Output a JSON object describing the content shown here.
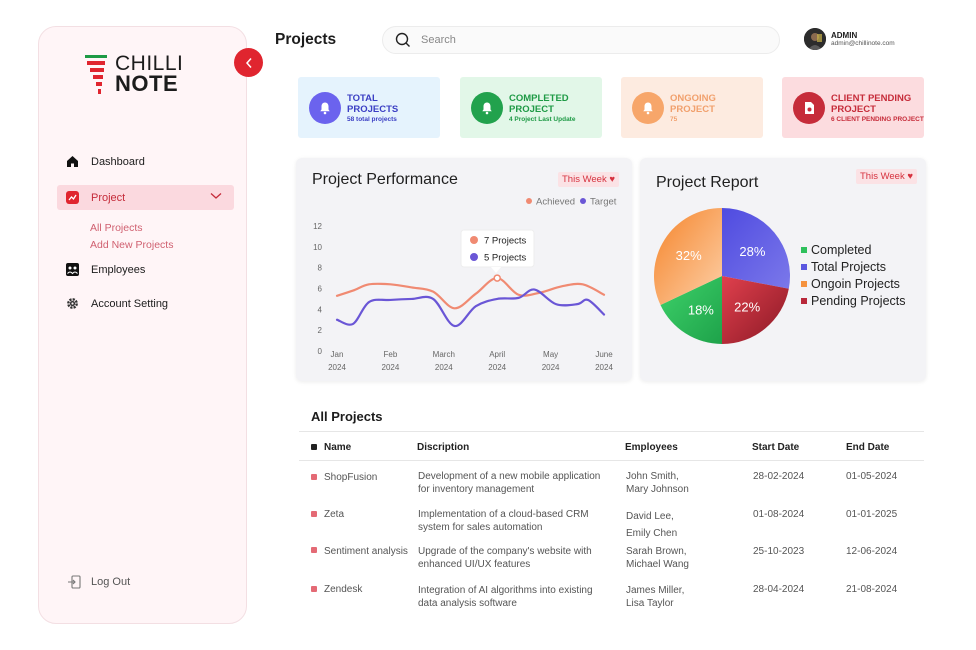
{
  "brand": {
    "line1": "CHILLI",
    "line2": "NOTE"
  },
  "sidebar": {
    "items": [
      {
        "label": "Dashboard",
        "icon": "home-icon"
      },
      {
        "label": "Project",
        "icon": "project-icon"
      },
      {
        "label": "Employees",
        "icon": "employees-icon"
      },
      {
        "label": "Account Setting",
        "icon": "gear-icon"
      }
    ],
    "sub_items": [
      "All Projects",
      "Add New Projects"
    ],
    "logout": "Log Out"
  },
  "header": {
    "title": "Projects",
    "search_placeholder": "Search",
    "user_name": "ADMIN",
    "user_email": "admin@chillinote.com"
  },
  "stats": [
    {
      "title_l1": "TOTAL",
      "title_l2": "PROJECTS",
      "sub": "58 total projects",
      "bg": "#e5f3fd",
      "color": "#3b3fc4",
      "circle": "#6b63ee"
    },
    {
      "title_l1": "COMPLETED",
      "title_l2": "PROJECT",
      "sub": "4 Project Last Update",
      "bg": "#e2f7e8",
      "color": "#1e9a45",
      "circle": "#22a24d"
    },
    {
      "title_l1": "ONGOING",
      "title_l2": "PROJECT",
      "sub": "75",
      "bg": "#fdebe0",
      "color": "#f1a06d",
      "circle": "#f7a66a"
    },
    {
      "title_l1": "CLIENT PENDING",
      "title_l2": "PROJECT",
      "sub": "6 CLIENT PENDING PROJECT",
      "bg": "#fcdcdf",
      "color": "#c62c3a",
      "circle": "#c62c3a"
    }
  ],
  "performance": {
    "title": "Project Performance",
    "week_label": "This Week",
    "legend": [
      "Achieved",
      "Target"
    ],
    "tooltip": [
      "7 Projects",
      "5 Projects"
    ]
  },
  "report": {
    "title": "Project Report",
    "week_label": "This Week",
    "legend": [
      "Completed",
      "Total Projects",
      "Ongoin Projects",
      "Pending Projects"
    ]
  },
  "chart_data": [
    {
      "type": "line",
      "title": "Project Performance",
      "x": [
        "Jan 2024",
        "Feb 2024",
        "March 2024",
        "April 2024",
        "May 2024",
        "June 2024"
      ],
      "ylim": [
        0,
        12
      ],
      "yticks": [
        "0",
        "2",
        "4",
        "6",
        "8",
        "10",
        "12"
      ],
      "xticks": [
        [
          "Jan",
          "2024"
        ],
        [
          "Feb",
          "2024"
        ],
        [
          "March",
          "2024"
        ],
        [
          "April",
          "2024"
        ],
        [
          "May",
          "2024"
        ],
        [
          "June",
          "2024"
        ]
      ],
      "legend_position": "top-right",
      "series": [
        {
          "name": "Achieved",
          "color": "#f08a72",
          "points": [
            [
              0,
              5.3
            ],
            [
              0.3,
              5.8
            ],
            [
              0.6,
              6.4
            ],
            [
              1,
              6.4
            ],
            [
              1.4,
              6.1
            ],
            [
              1.8,
              5.7
            ],
            [
              2.2,
              4.1
            ],
            [
              2.6,
              5.5
            ],
            [
              3,
              7.0
            ],
            [
              3.4,
              5.4
            ],
            [
              3.8,
              5.6
            ],
            [
              4.2,
              6.2
            ],
            [
              4.6,
              6.4
            ],
            [
              5,
              5.4
            ]
          ]
        },
        {
          "name": "Target",
          "color": "#6a56d6",
          "points": [
            [
              0,
              3.0
            ],
            [
              0.3,
              2.6
            ],
            [
              0.6,
              4.7
            ],
            [
              1,
              4.9
            ],
            [
              1.4,
              5.0
            ],
            [
              1.8,
              5.0
            ],
            [
              2.2,
              2.4
            ],
            [
              2.6,
              4.3
            ],
            [
              3,
              5.0
            ],
            [
              3.4,
              5.1
            ],
            [
              3.7,
              5.9
            ],
            [
              4.1,
              4.5
            ],
            [
              4.5,
              4.5
            ],
            [
              4.7,
              4.9
            ],
            [
              5,
              3.5
            ]
          ]
        }
      ]
    },
    {
      "type": "pie",
      "title": "Project Report",
      "slices": [
        {
          "label": "Completed",
          "value": 18,
          "text": "18%",
          "color": "#2ec05c"
        },
        {
          "label": "Total Projects",
          "value": 28,
          "text": "28%",
          "color": "#5b57e0"
        },
        {
          "label": "Ongoin Projects",
          "value": 32,
          "text": "32%",
          "color": "#f5923f"
        },
        {
          "label": "Pending Projects",
          "value": 22,
          "text": "22%",
          "color": "#b8283a"
        }
      ]
    }
  ],
  "table": {
    "title": "All Projects",
    "headers": [
      "Name",
      "Discription",
      "Employees",
      "Start Date",
      "End Date"
    ],
    "rows": [
      {
        "name": "ShopFusion",
        "desc_l1": "Development of a new mobile application",
        "desc_l2": "for inventory management",
        "emp_l1": "John Smith,",
        "emp_l2": "Mary Johnson",
        "start": "28-02-2024",
        "end": "01-05-2024"
      },
      {
        "name": "Zeta",
        "desc_l1": "Implementation of a cloud-based CRM",
        "desc_l2": "system for sales automation",
        "emp_l1": "David Lee,",
        "emp_l2": "Emily Chen",
        "start": "01-08-2024",
        "end": "01-01-2025"
      },
      {
        "name": "Sentiment analysis",
        "desc_l1": "Upgrade of the company's website with",
        "desc_l2": "enhanced UI/UX features",
        "emp_l1": "Sarah Brown,",
        "emp_l2": "Michael Wang",
        "start": "25-10-2023",
        "end": "12-06-2024"
      },
      {
        "name": "Zendesk",
        "desc_l1": "Integration of AI algorithms into existing",
        "desc_l2": "data analysis software",
        "emp_l1": "James Miller,",
        "emp_l2": "Lisa Taylor",
        "start": "28-04-2024",
        "end": "21-08-2024"
      }
    ]
  }
}
